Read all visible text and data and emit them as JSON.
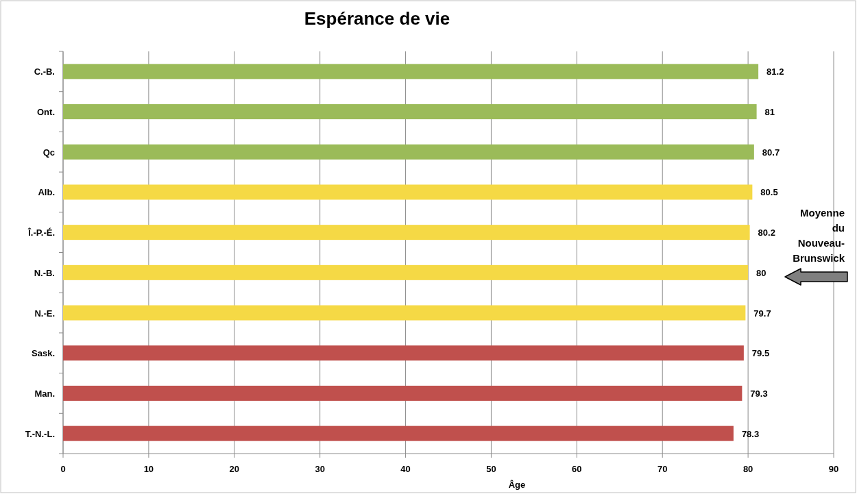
{
  "chart_data": {
    "type": "bar",
    "orientation": "horizontal",
    "title": "Espérance de vie",
    "xlabel": "Âge",
    "categories": [
      "C.-B.",
      "Ont.",
      "Qc",
      "Alb.",
      "Î.-P.-É.",
      "N.-B.",
      "N.-E.",
      "Sask.",
      "Man.",
      "T.-N.-L."
    ],
    "values": [
      81.2,
      81,
      80.7,
      80.5,
      80.2,
      80,
      79.7,
      79.5,
      79.3,
      78.3
    ],
    "colors": [
      "#9bbb59",
      "#9bbb59",
      "#9bbb59",
      "#f5d945",
      "#f5d945",
      "#f5d945",
      "#f5d945",
      "#c0504d",
      "#c0504d",
      "#c0504d"
    ],
    "xlim": [
      0,
      90
    ],
    "xticks": [
      0,
      10,
      20,
      30,
      40,
      50,
      60,
      70,
      80,
      90
    ],
    "grid": "x",
    "data_labels": true,
    "annotations": [
      "Moyenne du Nouveau-Brunswick"
    ]
  }
}
